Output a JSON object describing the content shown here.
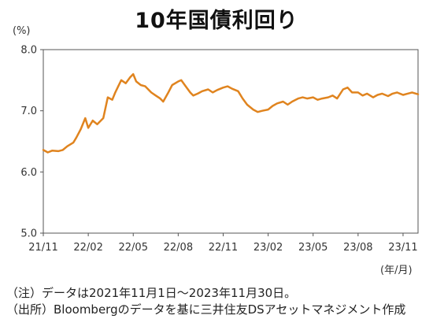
{
  "title": "10年国債利回り",
  "y_unit": "(%)",
  "x_unit": "(年/月)",
  "notes": [
    "（注）データは2021年11月1日～2023年11月30日。",
    "（出所）Bloombergのデータを基に三井住友DSアセットマネジメント作成"
  ],
  "chart_data": {
    "type": "line",
    "title": "10年国債利回り",
    "ylabel": "(%)",
    "xlabel": "(年/月)",
    "ylim": [
      5.0,
      8.0
    ],
    "yticks": [
      "5.0",
      "6.0",
      "7.0",
      "8.0"
    ],
    "xticks": [
      "21/11",
      "22/02",
      "22/05",
      "22/08",
      "22/11",
      "23/02",
      "23/05",
      "23/08",
      "23/11"
    ],
    "grid": false,
    "line_color": "#e0841f",
    "series": [
      {
        "name": "",
        "x": [
          0,
          0.3,
          0.6,
          1.0,
          1.3,
          1.6,
          2.0,
          2.2,
          2.5,
          2.8,
          3.0,
          3.3,
          3.6,
          4.0,
          4.3,
          4.6,
          4.8,
          5.0,
          5.2,
          5.5,
          5.8,
          6.0,
          6.2,
          6.5,
          6.8,
          7.0,
          7.2,
          7.5,
          7.8,
          8.0,
          8.3,
          8.6,
          9.0,
          9.2,
          9.5,
          9.8,
          10.0,
          10.3,
          10.6,
          11.0,
          11.3,
          11.6,
          12.0,
          12.3,
          12.6,
          13.0,
          13.3,
          13.6,
          14.0,
          14.3,
          14.6,
          15.0,
          15.3,
          15.6,
          16.0,
          16.3,
          16.6,
          17.0,
          17.3,
          17.6,
          18.0,
          18.3,
          18.6,
          19.0,
          19.3,
          19.6,
          20.0,
          20.3,
          20.6,
          21.0,
          21.3,
          21.6,
          22.0,
          22.3,
          22.6,
          23.0,
          23.3,
          23.6,
          24.0,
          24.3,
          24.6,
          25.0
        ],
        "values": [
          6.36,
          6.32,
          6.35,
          6.34,
          6.36,
          6.42,
          6.48,
          6.56,
          6.7,
          6.88,
          6.72,
          6.84,
          6.78,
          6.88,
          7.22,
          7.18,
          7.3,
          7.4,
          7.5,
          7.45,
          7.55,
          7.6,
          7.48,
          7.42,
          7.4,
          7.35,
          7.3,
          7.25,
          7.2,
          7.15,
          7.28,
          7.42,
          7.48,
          7.5,
          7.4,
          7.3,
          7.25,
          7.28,
          7.32,
          7.35,
          7.3,
          7.34,
          7.38,
          7.4,
          7.36,
          7.32,
          7.2,
          7.1,
          7.02,
          6.98,
          7.0,
          7.02,
          7.08,
          7.12,
          7.15,
          7.1,
          7.15,
          7.2,
          7.22,
          7.2,
          7.22,
          7.18,
          7.2,
          7.22,
          7.25,
          7.2,
          7.35,
          7.38,
          7.3,
          7.3,
          7.25,
          7.28,
          7.22,
          7.26,
          7.28,
          7.24,
          7.28,
          7.3,
          7.26,
          7.28,
          7.3,
          7.27
        ]
      }
    ]
  }
}
